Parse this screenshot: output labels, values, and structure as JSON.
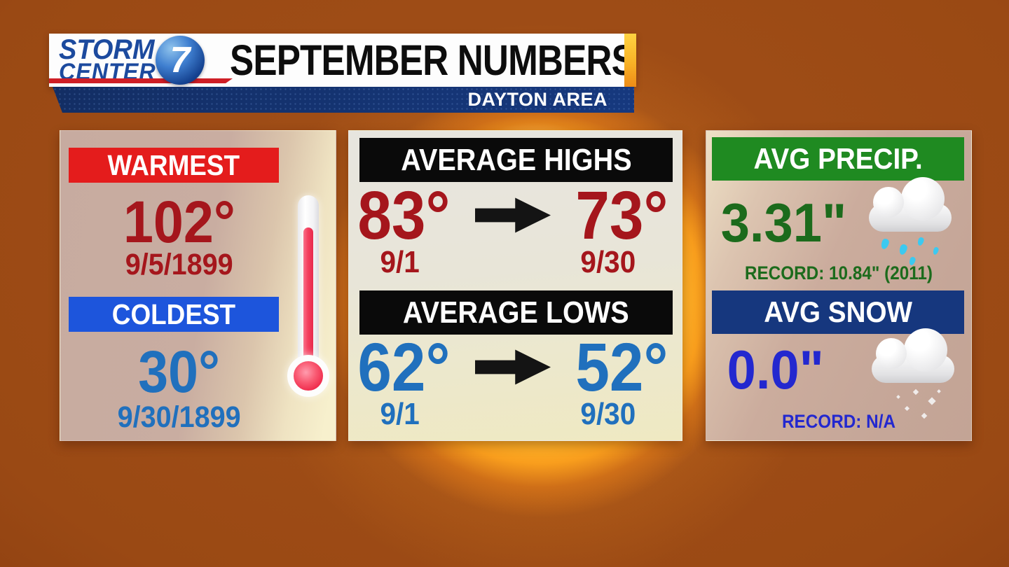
{
  "header": {
    "logo": {
      "line1": "STORM",
      "line2": "CENTER",
      "channel": "7"
    },
    "title": "SEPTEMBER NUMBERS",
    "subtitle": "DAYTON AREA"
  },
  "temps_panel": {
    "warmest": {
      "label": "WARMEST",
      "value": "102°",
      "date": "9/5/1899"
    },
    "coldest": {
      "label": "COLDEST",
      "value": "30°",
      "date": "9/30/1899"
    }
  },
  "averages_panel": {
    "highs": {
      "label": "AVERAGE HIGHS",
      "start_value": "83°",
      "start_date": "9/1",
      "end_value": "73°",
      "end_date": "9/30"
    },
    "lows": {
      "label": "AVERAGE LOWS",
      "start_value": "62°",
      "start_date": "9/1",
      "end_value": "52°",
      "end_date": "9/30"
    }
  },
  "precip_panel": {
    "precip": {
      "label": "AVG PRECIP.",
      "value": "3.31\"",
      "record": "RECORD: 10.84\" (2011)"
    },
    "snow": {
      "label": "AVG SNOW",
      "value": "0.0\"",
      "record": "RECORD: N/A"
    }
  },
  "icons": {
    "thermometer": "thermometer-icon",
    "rain_cloud": "rain-cloud-icon",
    "snow_cloud": "snow-cloud-icon",
    "arrow": "right-arrow-icon"
  },
  "colors": {
    "warm_red": "#e41c1c",
    "dark_red": "#a5161c",
    "cold_blue": "#1d55dc",
    "steel_blue": "#2070bd",
    "green": "#1f8a21",
    "dark_green": "#1c6b1c",
    "navy": "#16377e",
    "snow_blue": "#2328cf",
    "background_orange": "#9a4914"
  }
}
